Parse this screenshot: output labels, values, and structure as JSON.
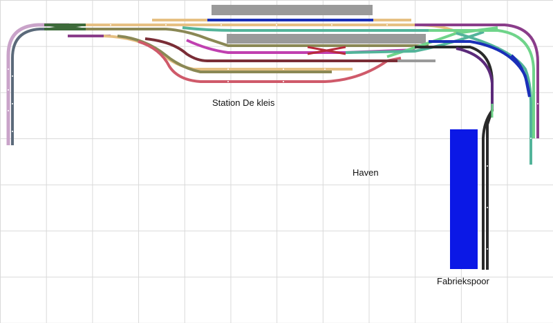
{
  "labels": {
    "station": "Station De kleis",
    "haven": "Haven",
    "fabriek": "Fabriekspoor"
  },
  "colors": {
    "grid": "#d9d9d9",
    "platform": "#9a9a9a",
    "factory_building": "#0b18e6",
    "track_dark": "#2a2a2a",
    "track_tan": "#e6c083",
    "track_olive": "#8a8855",
    "track_maroon": "#7a2d36",
    "track_magenta": "#c040b0",
    "track_pink": "#cf5a6a",
    "track_teal": "#53b49a",
    "track_green": "#6fd48a",
    "track_blue": "#1a2fb8",
    "track_purple": "#8a3d8a",
    "track_lavender": "#c9a3c9",
    "track_slate": "#5b6a7a"
  },
  "objects": [
    {
      "type": "platform",
      "name": "upper-station-platform"
    },
    {
      "type": "platform",
      "name": "middle-station-platform"
    },
    {
      "type": "building",
      "name": "factory-building"
    }
  ]
}
